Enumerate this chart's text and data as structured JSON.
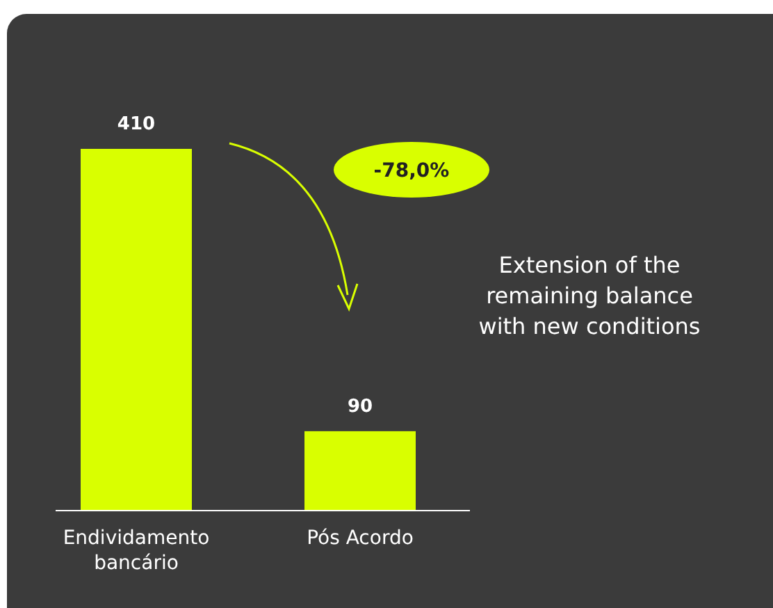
{
  "chart_data": {
    "type": "bar",
    "categories": [
      "Endividamento bancário",
      "Pós Acordo"
    ],
    "values": [
      410,
      90
    ],
    "color": "#d9ff00",
    "data_labels": true,
    "annotations": [
      "-78,0%",
      "Extension of the remaining balance with new conditions"
    ]
  }
}
